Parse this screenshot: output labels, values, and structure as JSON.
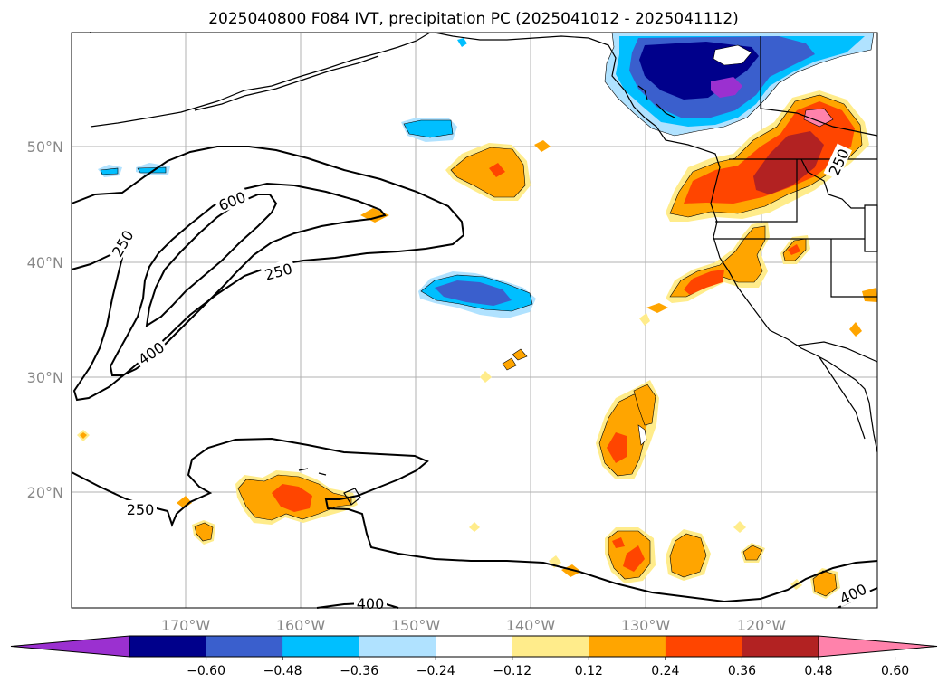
{
  "title": "2025040800 F084 IVT, precipitation PC (2025041012 - 2025041112)",
  "map": {
    "lon_ticks": [
      "170°W",
      "160°W",
      "150°W",
      "140°W",
      "130°W",
      "120°W"
    ],
    "lat_ticks": [
      "50°N",
      "40°N",
      "30°N",
      "20°N"
    ],
    "contour_labels": [
      "250",
      "600",
      "250",
      "400",
      "250",
      "400",
      "400",
      "250"
    ]
  },
  "colorbar": {
    "ticks": [
      "−0.60",
      "−0.48",
      "−0.36",
      "−0.24",
      "−0.12",
      "0.12",
      "0.24",
      "0.36",
      "0.48",
      "0.60"
    ],
    "colors": [
      "#9b30d0",
      "#00008b",
      "#3a5fcd",
      "#00bfff",
      "#b0e2ff",
      "#ffffff",
      "#ffec8b",
      "#ffa500",
      "#ff4500",
      "#b22222",
      "#ff82ab"
    ]
  }
}
